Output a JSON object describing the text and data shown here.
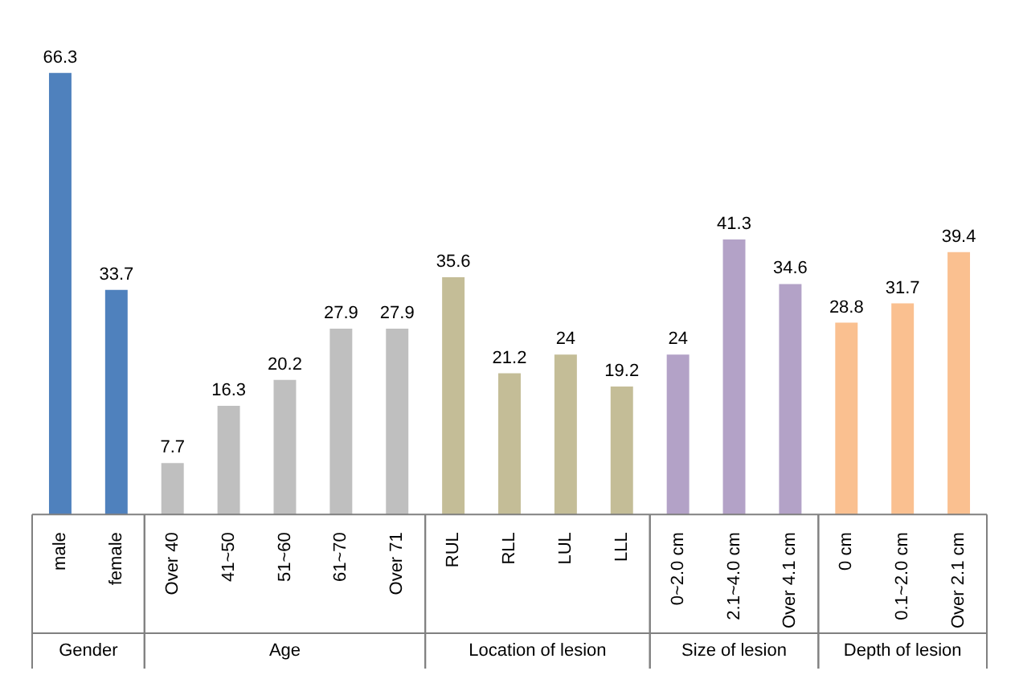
{
  "chart_data": {
    "type": "bar",
    "categories": [
      "male",
      "female",
      "Over 40",
      "41~50",
      "51~60",
      "61~70",
      "Over 71",
      "RUL",
      "RLL",
      "LUL",
      "LLL",
      "0~2.0 cm",
      "2.1~4.0 cm",
      "Over 4.1 cm",
      "0 cm",
      "0.1~2.0 cm",
      "Over 2.1 cm"
    ],
    "values": [
      66.3,
      33.7,
      7.7,
      16.3,
      20.2,
      27.9,
      27.9,
      35.6,
      21.2,
      24,
      19.2,
      24,
      41.3,
      34.6,
      28.8,
      31.7,
      39.4
    ],
    "colors": [
      "#4f81bd",
      "#4f81bd",
      "#bfbfbf",
      "#bfbfbf",
      "#bfbfbf",
      "#bfbfbf",
      "#bfbfbf",
      "#c4bd97",
      "#c4bd97",
      "#c4bd97",
      "#c4bd97",
      "#b3a2c7",
      "#b3a2c7",
      "#b3a2c7",
      "#fac090",
      "#fac090",
      "#fac090"
    ],
    "data_labels": true,
    "annotations": [
      "Gender",
      "Age",
      "Location of lesion",
      "Size of lesion",
      "Depth of lesion"
    ]
  }
}
